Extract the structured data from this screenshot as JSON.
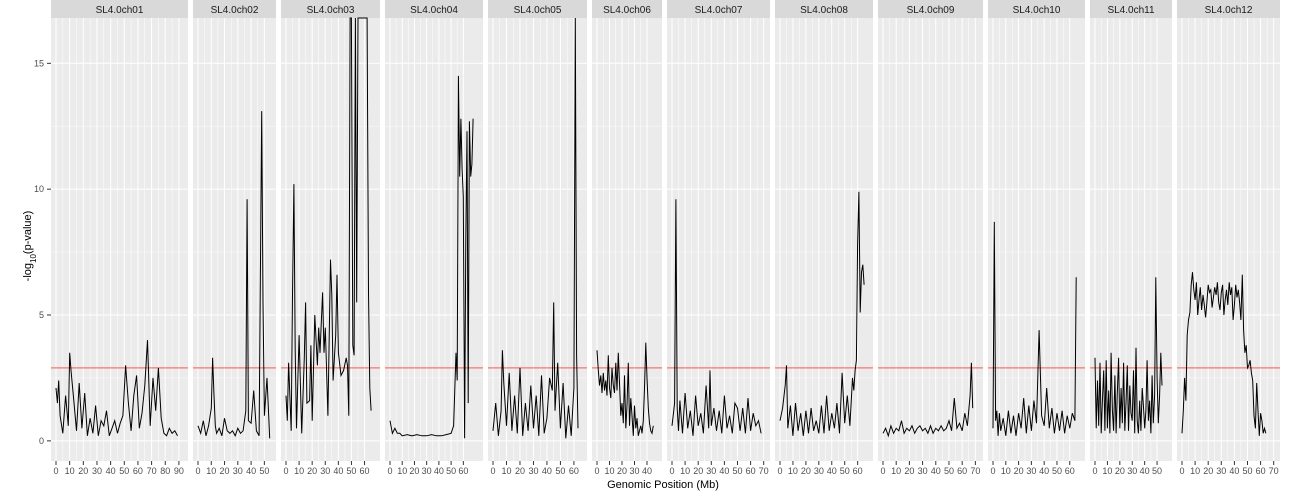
{
  "chart_data": {
    "type": "line",
    "title": "",
    "xlabel": "Genomic Position (Mb)",
    "ylabel": {
      "prefix": "-log",
      "sub": "10",
      "suffix": "(p-value)"
    },
    "ylim": [
      -0.8,
      16.8
    ],
    "yticks": [
      0,
      5,
      10,
      15
    ],
    "threshold": 2.9,
    "colors": {
      "line": "#000000",
      "threshold": "#f8766d",
      "panel": "#ebebeb",
      "strip": "#d9d9d9",
      "grid": "#ffffff"
    },
    "grid": true,
    "panels": [
      {
        "name": "SL4.0ch01",
        "xmax": 93,
        "xticks": [
          0,
          10,
          20,
          30,
          40,
          50,
          60,
          70,
          80,
          90
        ],
        "x": [
          0,
          1,
          2,
          3,
          5,
          7,
          9,
          10,
          11,
          13,
          15,
          17,
          19,
          21,
          23,
          25,
          27,
          29,
          31,
          33,
          35,
          37,
          39,
          41,
          43,
          45,
          47,
          49,
          51,
          53,
          55,
          57,
          59,
          61,
          63,
          65,
          67,
          69,
          71,
          73,
          75,
          77,
          79,
          81,
          83,
          85,
          87,
          89
        ],
        "y": [
          2.1,
          1.5,
          2.4,
          1.0,
          0.3,
          1.8,
          0.6,
          3.5,
          2.8,
          1.6,
          0.4,
          2.3,
          0.5,
          1.9,
          0.2,
          0.9,
          0.3,
          1.4,
          0.2,
          0.8,
          0.6,
          1.2,
          0.2,
          0.5,
          0.8,
          0.3,
          0.7,
          1.0,
          3.0,
          1.5,
          0.4,
          1.8,
          2.6,
          0.5,
          1.1,
          2.2,
          4.0,
          0.6,
          2.5,
          1.2,
          2.9,
          0.9,
          0.3,
          0.2,
          0.5,
          0.3,
          0.4,
          0.2
        ]
      },
      {
        "name": "SL4.0ch02",
        "xmax": 55,
        "xticks": [
          0,
          10,
          20,
          30,
          40,
          50
        ],
        "x": [
          0,
          2,
          4,
          6,
          8,
          10,
          11,
          12,
          13,
          14,
          16,
          18,
          20,
          22,
          24,
          26,
          28,
          30,
          32,
          34,
          36,
          37,
          38,
          40,
          42,
          44,
          46,
          48,
          49,
          50,
          52,
          54
        ],
        "y": [
          0.6,
          0.3,
          0.8,
          0.2,
          0.6,
          1.3,
          3.3,
          1.9,
          0.6,
          0.3,
          0.5,
          0.2,
          0.9,
          0.4,
          0.3,
          0.4,
          0.2,
          0.5,
          0.3,
          0.4,
          1.2,
          9.6,
          0.8,
          0.7,
          2.0,
          0.4,
          0.2,
          13.1,
          5.5,
          1.0,
          2.5,
          0.1
        ]
      },
      {
        "name": "SL4.0ch03",
        "xmax": 68,
        "xticks": [
          0,
          10,
          20,
          30,
          40,
          50,
          60
        ],
        "x": [
          0,
          1,
          2,
          4,
          5,
          6,
          7,
          8,
          10,
          12,
          14,
          15,
          16,
          18,
          19,
          20,
          22,
          24,
          25,
          26,
          28,
          29,
          30,
          32,
          34,
          35,
          36,
          38,
          39,
          40,
          42,
          44,
          46,
          47,
          48,
          49,
          50,
          51,
          52,
          53,
          54,
          55,
          56,
          58,
          60,
          61,
          62,
          63,
          64,
          65
        ],
        "y": [
          1.8,
          0.8,
          3.1,
          0.4,
          5.8,
          10.2,
          3.6,
          0.5,
          4.2,
          0.3,
          3.3,
          5.5,
          1.5,
          1.6,
          3.8,
          0.8,
          5.0,
          3.0,
          4.5,
          3.5,
          5.9,
          3.5,
          4.5,
          1.0,
          7.2,
          5.8,
          2.4,
          4.2,
          6.6,
          3.5,
          2.6,
          2.8,
          3.3,
          3.0,
          1.0,
          16.8,
          16.8,
          3.8,
          3.4,
          16.8,
          5.5,
          16.8,
          16.8,
          16.8,
          16.8,
          16.8,
          16.8,
          5.9,
          2.1,
          1.2
        ]
      },
      {
        "name": "SL4.0ch04",
        "xmax": 72,
        "xticks": [
          0,
          10,
          20,
          30,
          40,
          50,
          60
        ],
        "x": [
          0,
          2,
          4,
          6,
          8,
          10,
          14,
          18,
          22,
          26,
          30,
          34,
          38,
          42,
          46,
          50,
          52,
          54,
          55,
          56,
          57,
          58,
          59,
          60,
          61,
          62,
          63,
          64,
          65,
          66,
          67,
          68
        ],
        "y": [
          0.8,
          0.3,
          0.5,
          0.3,
          0.3,
          0.2,
          0.25,
          0.2,
          0.25,
          0.2,
          0.2,
          0.25,
          0.2,
          0.2,
          0.25,
          0.3,
          0.6,
          3.5,
          2.4,
          14.5,
          10.5,
          12.8,
          10.8,
          9.7,
          0.1,
          8.0,
          12.3,
          1.5,
          12.7,
          10.5,
          11.0,
          12.8
        ]
      },
      {
        "name": "SL4.0ch05",
        "xmax": 66,
        "xticks": [
          0,
          10,
          20,
          30,
          40,
          50,
          60
        ],
        "x": [
          0,
          2,
          4,
          6,
          7,
          8,
          10,
          12,
          14,
          16,
          18,
          20,
          22,
          24,
          26,
          28,
          30,
          32,
          34,
          36,
          38,
          40,
          42,
          44,
          45,
          46,
          48,
          50,
          52,
          54,
          56,
          58,
          60,
          61,
          62,
          63
        ],
        "y": [
          0.4,
          1.5,
          0.2,
          1.2,
          3.6,
          2.3,
          0.6,
          2.7,
          0.4,
          1.8,
          0.3,
          2.9,
          0.2,
          1.5,
          0.4,
          2.2,
          0.5,
          1.8,
          0.2,
          2.6,
          0.3,
          0.9,
          2.5,
          2.0,
          5.5,
          1.2,
          3.1,
          0.5,
          2.3,
          0.1,
          1.4,
          0.2,
          2.1,
          16.8,
          3.4,
          0.5
        ]
      },
      {
        "name": "SL4.0ch06",
        "xmax": 48,
        "xticks": [
          0,
          10,
          20,
          30,
          40
        ],
        "x": [
          0,
          1,
          2,
          3,
          4,
          5,
          6,
          7,
          8,
          9,
          10,
          11,
          12,
          13,
          14,
          15,
          16,
          17,
          18,
          19,
          20,
          21,
          22,
          23,
          24,
          25,
          26,
          27,
          28,
          29,
          30,
          31,
          32,
          33,
          34,
          35,
          36,
          37,
          38,
          39,
          40,
          41,
          42,
          43,
          44,
          45
        ],
        "y": [
          3.6,
          2.8,
          2.2,
          2.6,
          1.9,
          2.7,
          2.0,
          2.4,
          1.8,
          3.4,
          2.1,
          1.7,
          2.9,
          2.2,
          1.9,
          3.1,
          2.0,
          3.5,
          2.3,
          1.0,
          1.5,
          0.7,
          2.6,
          0.5,
          1.4,
          3.1,
          0.6,
          1.7,
          1.0,
          0.2,
          1.4,
          0.5,
          0.9,
          0.2,
          0.4,
          0.6,
          0.3,
          0.8,
          2.1,
          3.9,
          2.5,
          1.3,
          0.7,
          0.4,
          0.3,
          0.6
        ]
      },
      {
        "name": "SL4.0ch07",
        "xmax": 71,
        "xticks": [
          0,
          10,
          20,
          30,
          40,
          50,
          60,
          70
        ],
        "x": [
          0,
          2,
          3,
          4,
          5,
          6,
          8,
          10,
          12,
          14,
          16,
          18,
          20,
          22,
          24,
          26,
          28,
          29,
          30,
          32,
          34,
          36,
          38,
          40,
          42,
          44,
          46,
          48,
          50,
          52,
          54,
          56,
          58,
          60,
          62,
          64,
          66,
          68
        ],
        "y": [
          0.6,
          1.5,
          9.6,
          1.3,
          0.4,
          1.6,
          0.3,
          1.9,
          0.5,
          1.2,
          0.2,
          1.8,
          0.6,
          1.1,
          0.3,
          2.2,
          0.5,
          2.8,
          0.6,
          1.3,
          0.4,
          1.2,
          0.3,
          1.8,
          0.5,
          1.0,
          0.3,
          1.5,
          1.3,
          0.4,
          1.3,
          0.3,
          1.7,
          0.4,
          1.1,
          0.6,
          0.8,
          0.3
        ]
      },
      {
        "name": "SL4.0ch08",
        "xmax": 68,
        "xticks": [
          0,
          10,
          20,
          30,
          40,
          50,
          60
        ],
        "x": [
          0,
          2,
          4,
          5,
          6,
          8,
          10,
          12,
          14,
          16,
          18,
          20,
          22,
          24,
          26,
          28,
          30,
          32,
          34,
          36,
          38,
          40,
          42,
          44,
          46,
          48,
          50,
          52,
          54,
          56,
          57,
          58,
          59,
          60,
          61,
          62,
          63,
          64,
          65
        ],
        "y": [
          0.8,
          1.3,
          2.2,
          3.0,
          0.5,
          1.4,
          0.2,
          1.5,
          0.4,
          1.1,
          0.2,
          1.2,
          0.3,
          1.3,
          0.4,
          0.8,
          0.3,
          1.4,
          0.3,
          1.8,
          0.4,
          1.1,
          0.5,
          1.5,
          0.3,
          2.7,
          0.7,
          1.8,
          0.6,
          2.5,
          2.0,
          2.8,
          3.2,
          7.8,
          9.9,
          5.1,
          6.7,
          7.0,
          6.2
        ]
      },
      {
        "name": "SL4.0ch09",
        "xmax": 72,
        "xticks": [
          0,
          10,
          20,
          30,
          40,
          50,
          60,
          70
        ],
        "x": [
          0,
          2,
          4,
          6,
          8,
          10,
          12,
          14,
          16,
          18,
          20,
          22,
          24,
          26,
          28,
          30,
          32,
          34,
          36,
          38,
          40,
          42,
          44,
          46,
          48,
          50,
          52,
          54,
          56,
          58,
          60,
          62,
          64,
          66,
          67,
          68
        ],
        "y": [
          0.3,
          0.5,
          0.2,
          0.6,
          0.3,
          0.5,
          0.4,
          0.8,
          0.3,
          0.5,
          0.4,
          0.6,
          0.3,
          0.5,
          0.6,
          0.4,
          0.5,
          0.3,
          0.6,
          0.3,
          0.5,
          0.4,
          0.6,
          0.4,
          0.5,
          0.8,
          0.4,
          1.7,
          0.5,
          0.7,
          0.4,
          1.1,
          0.6,
          1.8,
          3.1,
          1.3
        ]
      },
      {
        "name": "SL4.0ch10",
        "xmax": 68,
        "xticks": [
          0,
          10,
          20,
          30,
          40,
          50,
          60
        ],
        "x": [
          0,
          1,
          2,
          3,
          4,
          5,
          6,
          8,
          10,
          12,
          14,
          16,
          18,
          20,
          22,
          24,
          26,
          28,
          30,
          32,
          34,
          36,
          38,
          40,
          42,
          44,
          46,
          48,
          50,
          52,
          54,
          56,
          58,
          60,
          62,
          64,
          65
        ],
        "y": [
          0.5,
          8.7,
          0.8,
          1.2,
          0.2,
          1.1,
          0.4,
          0.9,
          0.2,
          1.2,
          0.3,
          1.0,
          0.2,
          1.1,
          0.5,
          1.7,
          0.3,
          1.4,
          0.4,
          1.6,
          0.7,
          4.4,
          1.0,
          0.6,
          2.1,
          0.5,
          1.3,
          0.3,
          1.1,
          0.4,
          1.2,
          0.3,
          1.0,
          0.5,
          1.1,
          0.8,
          6.5
        ]
      },
      {
        "name": "SL4.0ch11",
        "xmax": 58,
        "xticks": [
          0,
          10,
          20,
          30,
          40,
          50
        ],
        "x": [
          0,
          1,
          2,
          3,
          4,
          5,
          6,
          7,
          8,
          9,
          10,
          11,
          12,
          13,
          14,
          15,
          16,
          17,
          18,
          19,
          20,
          21,
          22,
          23,
          24,
          25,
          26,
          27,
          28,
          29,
          30,
          31,
          32,
          33,
          34,
          35,
          36,
          37,
          38,
          39,
          40,
          41,
          42,
          43,
          44,
          45,
          46,
          47,
          48,
          49,
          50,
          51,
          52,
          53,
          54
        ],
        "y": [
          3.3,
          0.5,
          2.4,
          0.6,
          3.1,
          0.3,
          1.6,
          2.8,
          0.4,
          3.2,
          0.5,
          2.0,
          0.3,
          3.5,
          1.2,
          0.4,
          2.6,
          0.3,
          1.9,
          3.3,
          0.5,
          2.1,
          0.7,
          3.1,
          0.4,
          1.5,
          3.0,
          0.4,
          2.2,
          1.1,
          0.8,
          2.8,
          0.3,
          3.7,
          0.8,
          0.3,
          1.6,
          0.4,
          2.1,
          1.4,
          0.5,
          1.2,
          3.2,
          0.8,
          1.6,
          0.3,
          2.6,
          0.7,
          1.8,
          6.5,
          2.5,
          0.7,
          1.8,
          3.5,
          2.2
        ]
      },
      {
        "name": "SL4.0ch12",
        "xmax": 71,
        "xticks": [
          0,
          10,
          20,
          30,
          40,
          50,
          60,
          70
        ],
        "x": [
          0,
          1,
          2,
          3,
          4,
          5,
          6,
          7,
          8,
          9,
          10,
          11,
          12,
          13,
          14,
          15,
          16,
          17,
          18,
          19,
          20,
          21,
          22,
          23,
          24,
          25,
          26,
          27,
          28,
          29,
          30,
          31,
          32,
          33,
          34,
          35,
          36,
          37,
          38,
          39,
          40,
          41,
          42,
          43,
          44,
          45,
          46,
          47,
          48,
          49,
          50,
          51,
          52,
          53,
          54,
          55,
          56,
          57,
          58,
          59,
          60,
          61,
          62,
          63,
          64
        ],
        "y": [
          0.3,
          1.2,
          2.5,
          1.6,
          4.2,
          4.8,
          5.1,
          6.2,
          6.7,
          6.0,
          5.6,
          6.3,
          5.0,
          5.6,
          6.1,
          5.2,
          5.8,
          5.4,
          4.9,
          5.5,
          6.2,
          5.9,
          6.0,
          5.3,
          5.7,
          6.1,
          5.8,
          6.3,
          5.5,
          5.2,
          5.9,
          6.2,
          5.0,
          5.6,
          6.0,
          5.4,
          6.3,
          5.8,
          6.1,
          4.8,
          5.4,
          6.2,
          5.7,
          6.0,
          5.5,
          4.8,
          6.6,
          4.4,
          3.5,
          3.8,
          2.9,
          3.0,
          3.2,
          2.7,
          2.4,
          1.0,
          0.5,
          2.3,
          1.2,
          0.2,
          1.1,
          0.8,
          0.3,
          0.5,
          0.3
        ]
      }
    ]
  }
}
